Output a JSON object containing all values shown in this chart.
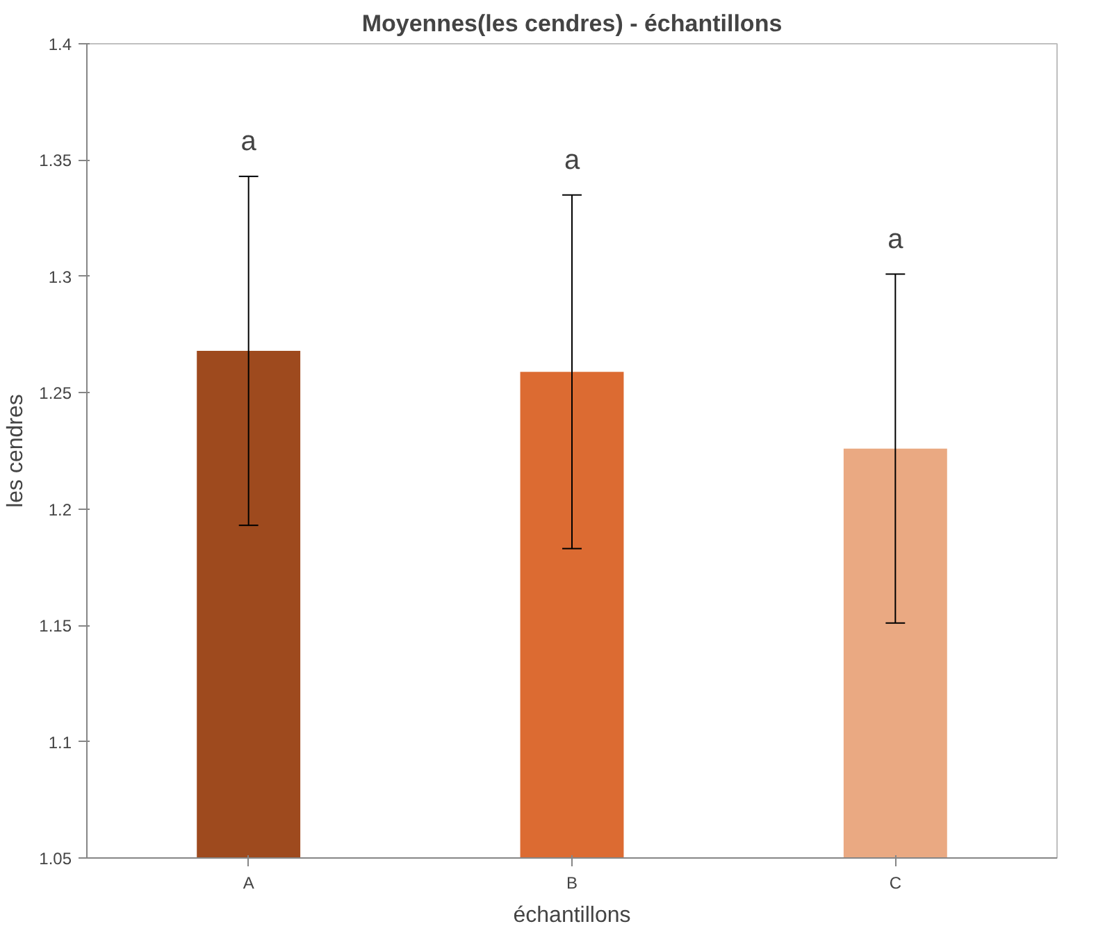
{
  "chart_data": {
    "type": "bar",
    "title": "Moyennes(les cendres) - échantillons",
    "xlabel": "échantillons",
    "ylabel": "les cendres",
    "categories": [
      "A",
      "B",
      "C"
    ],
    "values": [
      1.268,
      1.259,
      1.226
    ],
    "colors": [
      "#9e4a1e",
      "#dc6b32",
      "#eaa982"
    ],
    "errors": [
      0.075,
      0.076,
      0.075
    ],
    "ylim": [
      1.05,
      1.4
    ],
    "yticks": [
      1.05,
      1.1,
      1.15,
      1.2,
      1.25,
      1.3,
      1.35,
      1.4
    ],
    "annotations": [
      "a",
      "a",
      "a"
    ],
    "grid": false
  }
}
